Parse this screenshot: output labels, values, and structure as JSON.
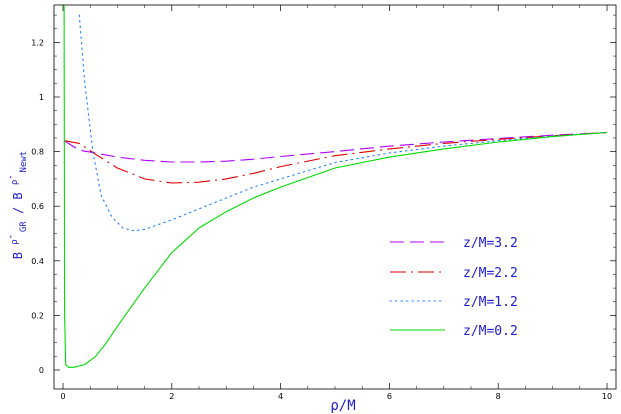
{
  "chart_data": {
    "type": "line",
    "xlabel": "ρ/M",
    "ylabel": {
      "base1": "B",
      "sup1": "ρ̂",
      "sub1": "GR",
      "sep": "/",
      "base2": "B",
      "sup2": "ρ̂",
      "sub2": "Newt"
    },
    "xlim": [
      0,
      10
    ],
    "ylim": [
      0,
      1.35
    ],
    "xticks": [
      "0",
      "2",
      "4",
      "6",
      "8",
      "10"
    ],
    "yticks": [
      "0",
      "0.2",
      "0.4",
      "0.6",
      "0.8",
      "1",
      "1.2"
    ],
    "grid": false,
    "legend_position": "center-right",
    "series": [
      {
        "name": "z/M=3.2",
        "color": "#b000ff",
        "dash": "long-dash",
        "x": [
          0.02,
          0.3,
          0.6,
          1.0,
          1.5,
          2.0,
          2.5,
          3.0,
          3.5,
          4.0,
          5.0,
          6.0,
          7.0,
          8.0,
          9.0,
          10.0
        ],
        "y": [
          0.84,
          0.805,
          0.795,
          0.78,
          0.768,
          0.762,
          0.762,
          0.765,
          0.772,
          0.782,
          0.8,
          0.82,
          0.835,
          0.848,
          0.86,
          0.87
        ]
      },
      {
        "name": "z/M=2.2",
        "color": "#e00000",
        "dash": "dash-dot",
        "x": [
          0.02,
          0.3,
          0.6,
          1.0,
          1.5,
          2.0,
          2.5,
          3.0,
          3.5,
          4.0,
          5.0,
          6.0,
          7.0,
          8.0,
          9.0,
          10.0
        ],
        "y": [
          0.84,
          0.83,
          0.79,
          0.74,
          0.7,
          0.685,
          0.688,
          0.7,
          0.72,
          0.745,
          0.785,
          0.81,
          0.83,
          0.845,
          0.858,
          0.87
        ]
      },
      {
        "name": "z/M=1.2",
        "color": "#2080ff",
        "dash": "dotted",
        "x": [
          0.3,
          0.4,
          0.55,
          0.7,
          0.9,
          1.1,
          1.3,
          1.5,
          2.0,
          2.5,
          3.0,
          3.5,
          4.0,
          5.0,
          6.0,
          7.0,
          8.0,
          9.0,
          10.0
        ],
        "y": [
          1.3,
          1.05,
          0.8,
          0.64,
          0.56,
          0.52,
          0.51,
          0.515,
          0.55,
          0.59,
          0.63,
          0.67,
          0.7,
          0.76,
          0.795,
          0.82,
          0.84,
          0.857,
          0.87
        ]
      },
      {
        "name": "z/M=0.2",
        "color": "#00dd00",
        "dash": "solid",
        "x": [
          0.02,
          0.03,
          0.05,
          0.1,
          0.2,
          0.4,
          0.6,
          0.8,
          1.0,
          1.5,
          2.0,
          2.5,
          3.0,
          3.5,
          4.0,
          5.0,
          6.0,
          7.0,
          8.0,
          9.0,
          10.0
        ],
        "y": [
          1.35,
          0.2,
          0.02,
          0.01,
          0.01,
          0.02,
          0.05,
          0.1,
          0.16,
          0.3,
          0.43,
          0.52,
          0.58,
          0.63,
          0.67,
          0.74,
          0.78,
          0.81,
          0.835,
          0.855,
          0.87
        ]
      }
    ]
  }
}
